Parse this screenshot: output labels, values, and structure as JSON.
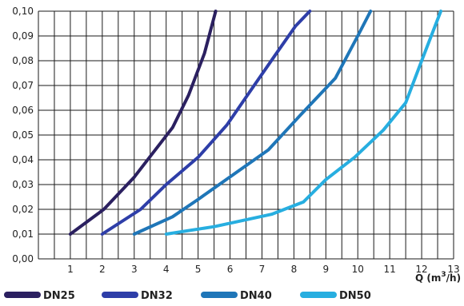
{
  "chart_data": {
    "type": "line",
    "title": "",
    "xlabel": "",
    "ylabel": "",
    "xlim": [
      0,
      13
    ],
    "ylim": [
      0,
      0.1
    ],
    "grid": true,
    "x_ticks": [
      "1",
      "2",
      "3",
      "4",
      "5",
      "6",
      "7",
      "8",
      "9",
      "10",
      "11",
      "12",
      "13"
    ],
    "y_ticks": [
      "0,00",
      "0,01",
      "0,02",
      "0,03",
      "0,04",
      "0,05",
      "0,06",
      "0,07",
      "0,08",
      "0,09",
      "0,10"
    ],
    "legend_placement": "bottom",
    "unit_label": {
      "prefix": "Q (m",
      "sup": "3",
      "suffix": "/h)"
    },
    "series": [
      {
        "name": "DN25",
        "color": "#2b2060",
        "x": [
          1.0,
          2.05,
          3.0,
          3.6,
          4.2,
          4.7,
          5.2,
          5.55
        ],
        "y": [
          0.01,
          0.02,
          0.033,
          0.043,
          0.053,
          0.066,
          0.083,
          0.1
        ]
      },
      {
        "name": "DN32",
        "color": "#2e3ea8",
        "x": [
          2.0,
          3.2,
          4.0,
          5.0,
          5.9,
          6.7,
          7.4,
          8.05,
          8.5
        ],
        "y": [
          0.01,
          0.02,
          0.03,
          0.041,
          0.054,
          0.069,
          0.082,
          0.094,
          0.1
        ]
      },
      {
        "name": "DN40",
        "color": "#1f76b8",
        "x": [
          3.0,
          4.2,
          5.0,
          6.1,
          7.2,
          8.2,
          9.3,
          10.0,
          10.4
        ],
        "y": [
          0.01,
          0.017,
          0.024,
          0.034,
          0.044,
          0.058,
          0.073,
          0.09,
          0.1
        ]
      },
      {
        "name": "DN50",
        "color": "#27aee0",
        "x": [
          4.0,
          5.5,
          7.3,
          8.3,
          9.0,
          9.9,
          10.8,
          11.5,
          12.0,
          12.6
        ],
        "y": [
          0.01,
          0.013,
          0.018,
          0.023,
          0.032,
          0.041,
          0.052,
          0.063,
          0.08,
          0.1
        ]
      }
    ]
  }
}
